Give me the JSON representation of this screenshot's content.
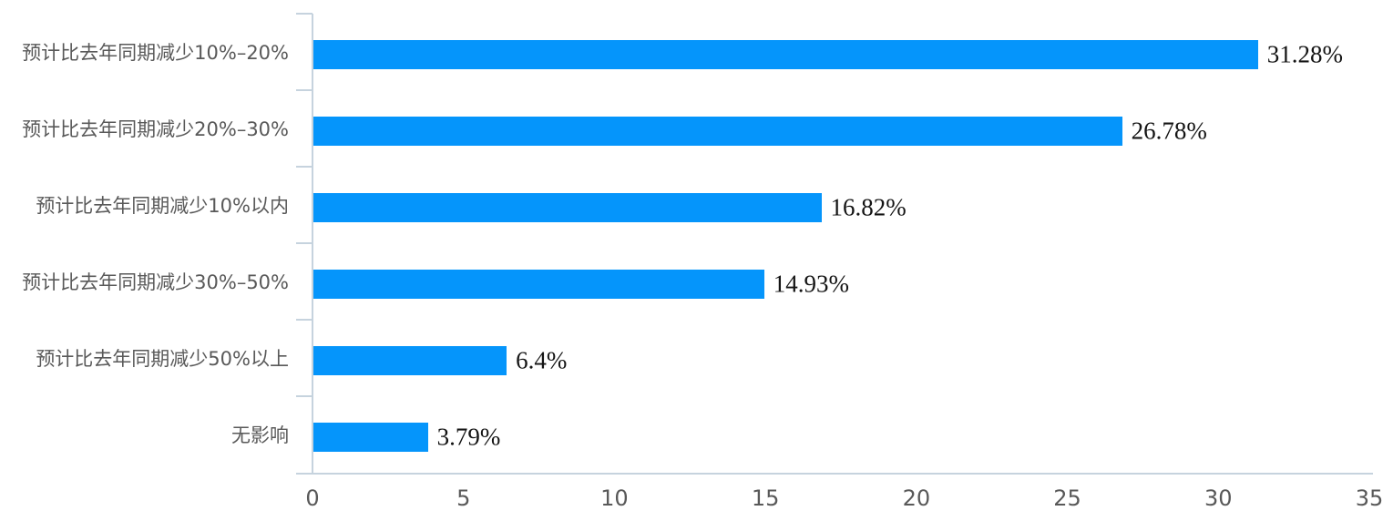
{
  "chart_data": {
    "type": "bar",
    "orientation": "horizontal",
    "title": "",
    "xlabel": "",
    "ylabel": "",
    "categories": [
      "预计比去年同期减少10%–20%",
      "预计比去年同期减少20%–30%",
      "预计比去年同期减少10%以内",
      "预计比去年同期减少30%–50%",
      "预计比去年同期减少50%以上",
      "无影响"
    ],
    "values": [
      31.28,
      26.78,
      16.82,
      14.93,
      6.4,
      3.79
    ],
    "value_labels": [
      "31.28%",
      "26.78%",
      "16.82%",
      "14.93%",
      "6.4%",
      "3.79%"
    ],
    "x_ticks": [
      0,
      5,
      10,
      15,
      20,
      25,
      30,
      35
    ],
    "xlim": [
      0,
      35
    ],
    "grid": false,
    "legend": null,
    "colors": {
      "bar": "#0595FB",
      "axis_line": "#C6D3DE",
      "category_label": "#595959",
      "tick_label": "#595959",
      "value_label": "#141414",
      "background": "#FFFFFF"
    }
  }
}
